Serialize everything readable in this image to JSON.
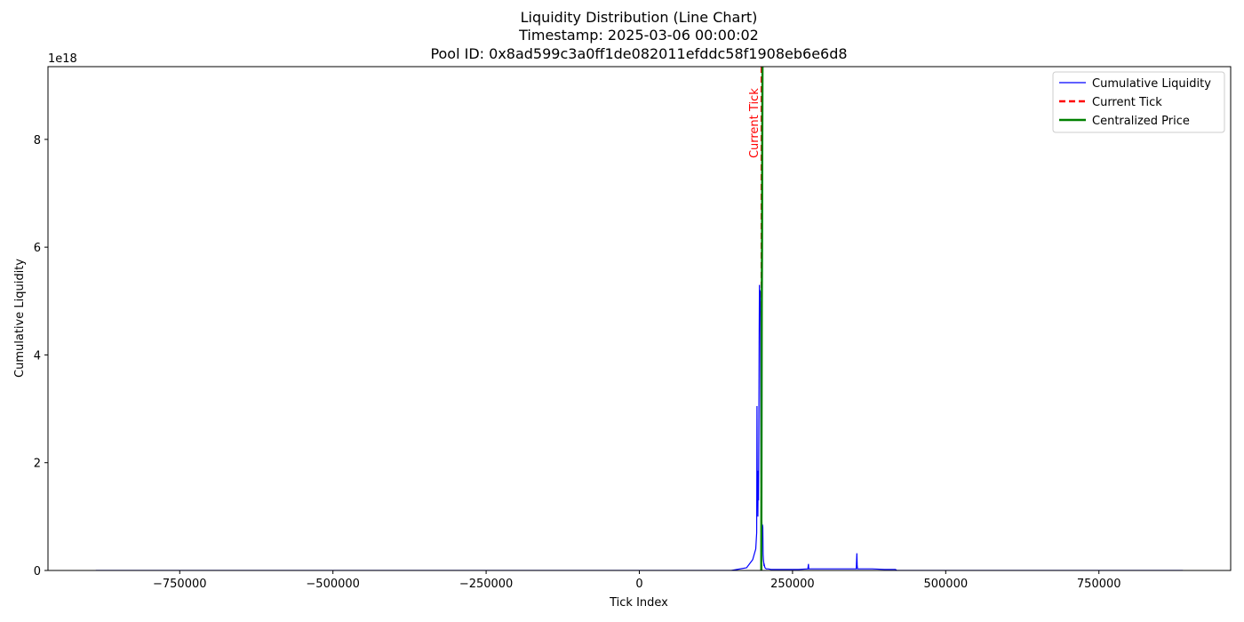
{
  "chart_data": {
    "type": "line",
    "title_lines": [
      "Liquidity Distribution (Line Chart)",
      "Timestamp: 2025-03-06 00:00:02",
      "Pool ID: 0x8ad599c3a0ff1de082011efddc58f1908eb6e6d8"
    ],
    "xlabel": "Tick Index",
    "ylabel": "Cumulative Liquidity",
    "y_offset_label": "1e18",
    "xlim": [
      -965000,
      965000
    ],
    "ylim": [
      0,
      9.35
    ],
    "x_ticks": [
      -750000,
      -500000,
      -250000,
      0,
      250000,
      500000,
      750000
    ],
    "x_tick_labels": [
      "−750000",
      "−500000",
      "−250000",
      "0",
      "250000",
      "500000",
      "750000"
    ],
    "y_ticks": [
      0,
      2,
      4,
      6,
      8
    ],
    "y_tick_labels": [
      "0",
      "2",
      "4",
      "6",
      "8"
    ],
    "grid": false,
    "legend_position": "top-right",
    "series": [
      {
        "name": "Cumulative Liquidity",
        "color": "#0000ff",
        "style": "solid",
        "x": [
          -887000,
          150000,
          175000,
          185000,
          190000,
          191500,
          192000,
          192500,
          193000,
          193500,
          194000,
          194500,
          195000,
          195500,
          196000,
          196500,
          197000,
          197500,
          198000,
          198500,
          199000,
          199500,
          200000,
          200500,
          201000,
          201500,
          202000,
          202500,
          203000,
          203500,
          204000,
          205000,
          207000,
          210000,
          215000,
          220000,
          240000,
          260000,
          275000,
          276000,
          276500,
          277000,
          278000,
          300000,
          340000,
          354000,
          355000,
          355500,
          356000,
          357000,
          380000,
          400000,
          418000,
          420000,
          600000,
          887000
        ],
        "y": [
          0.0,
          0.0,
          0.05,
          0.2,
          0.4,
          0.7,
          3.05,
          1.2,
          1.8,
          1.0,
          1.85,
          1.3,
          2.5,
          4.2,
          5.3,
          4.9,
          5.2,
          4.85,
          3.2,
          1.9,
          1.2,
          0.6,
          0.9,
          0.7,
          0.85,
          0.8,
          0.3,
          0.2,
          0.15,
          0.08,
          0.1,
          0.05,
          0.03,
          0.03,
          0.02,
          0.02,
          0.02,
          0.02,
          0.03,
          0.12,
          0.03,
          0.03,
          0.03,
          0.03,
          0.03,
          0.03,
          0.32,
          0.1,
          0.03,
          0.03,
          0.03,
          0.02,
          0.02,
          0.0,
          0.0,
          0.0
        ]
      },
      {
        "name": "Current Tick",
        "color": "#ff0000",
        "style": "dashed",
        "x_value": 199300
      },
      {
        "name": "Centralized Price",
        "color": "#008000",
        "style": "solid",
        "x": [
          199000,
          199800,
          200200,
          200600,
          201000
        ],
        "y": [
          0.0,
          4.9,
          6.0,
          8.0,
          9.35
        ]
      }
    ],
    "annotations": [
      {
        "text": "Current Tick",
        "x": 199300,
        "y_top": 8.95,
        "color": "#ff0000",
        "rotation": "vertical"
      }
    ]
  }
}
